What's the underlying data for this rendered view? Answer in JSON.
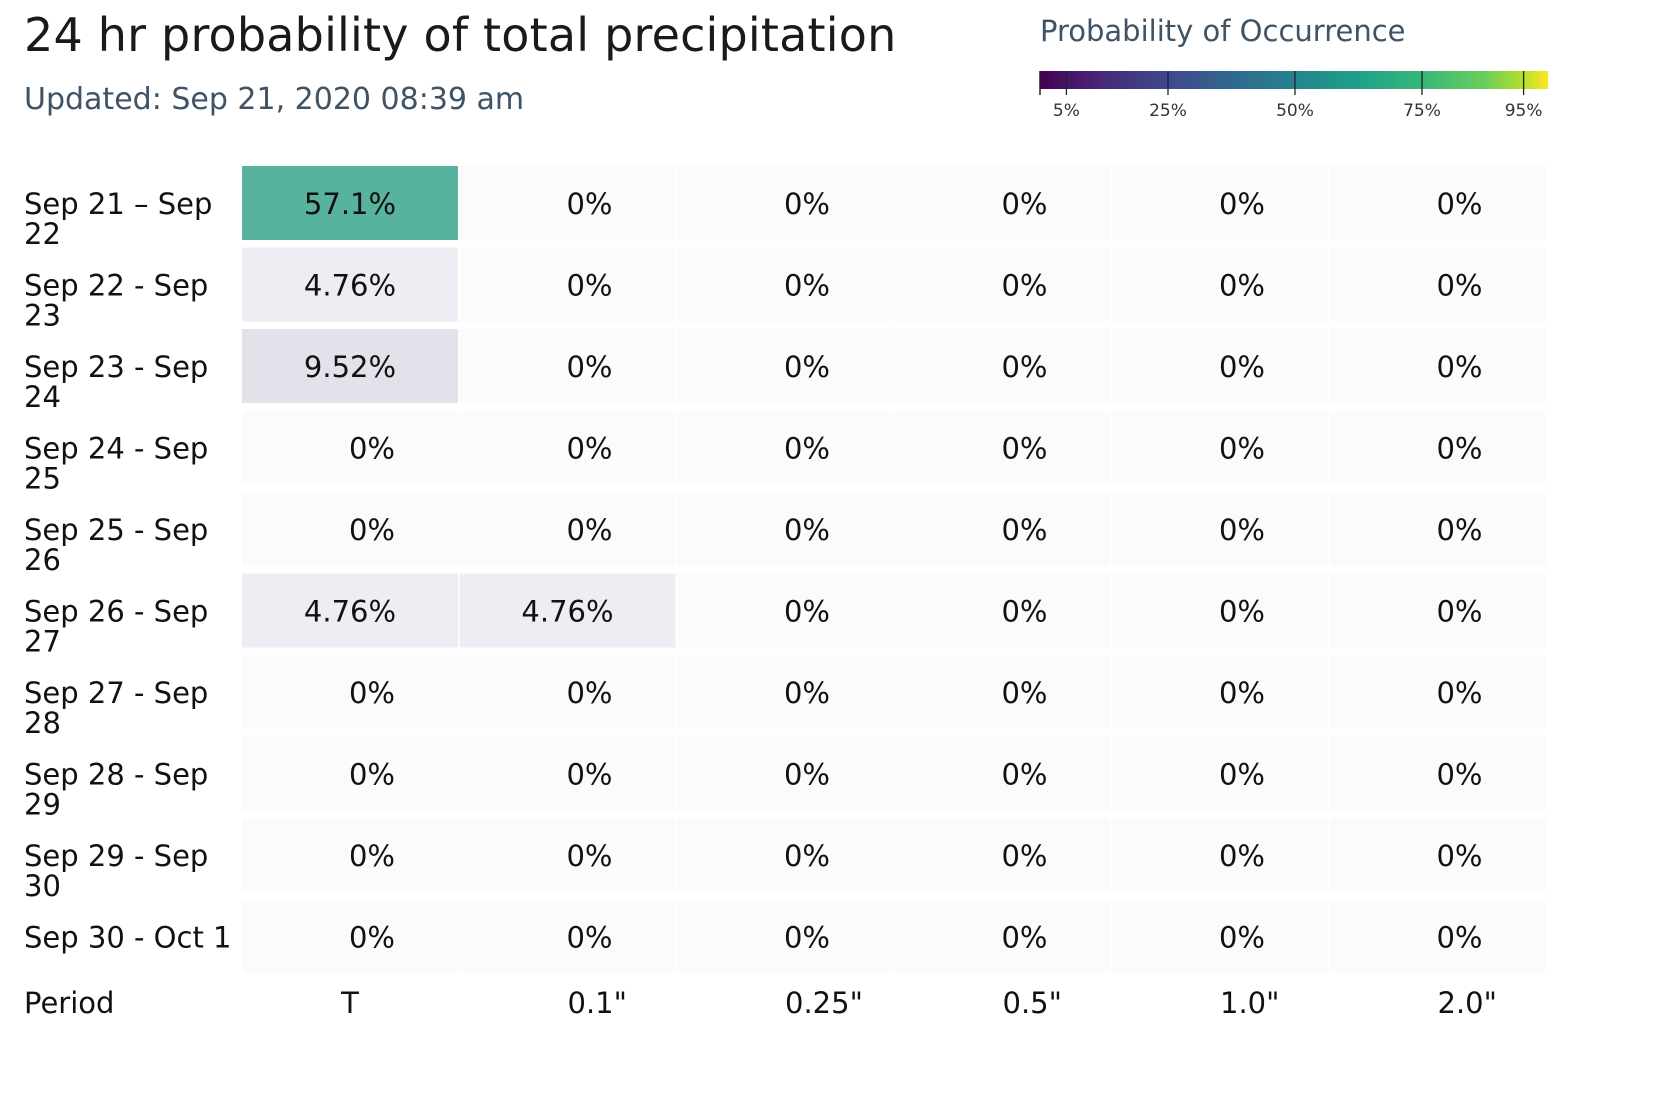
{
  "header": {
    "title": "24 hr probability of total precipitation",
    "updated": "Updated: Sep 21, 2020 08:39 am"
  },
  "legend": {
    "title": "Probability of Occurrence",
    "ticks": [
      {
        "value": 5,
        "label": "5%"
      },
      {
        "value": 25,
        "label": "25%"
      },
      {
        "value": 50,
        "label": "50%"
      },
      {
        "value": 75,
        "label": "75%"
      },
      {
        "value": 95,
        "label": "95%"
      }
    ],
    "colorscale": "viridis"
  },
  "chart_data": {
    "type": "heatmap",
    "title": "24 hr probability of total precipitation",
    "xlabel": "Period",
    "x_categories": [
      "T",
      "0.1\"",
      "0.25\"",
      "0.5\"",
      "1.0\"",
      "2.0\""
    ],
    "y_categories": [
      [
        "Sep 21 – Sep",
        "22"
      ],
      [
        "Sep 22 - Sep",
        "23"
      ],
      [
        "Sep 23 - Sep",
        "24"
      ],
      [
        "Sep 24 - Sep",
        "25"
      ],
      [
        "Sep 25 - Sep",
        "26"
      ],
      [
        "Sep 26 - Sep",
        "27"
      ],
      [
        "Sep 27 - Sep",
        "28"
      ],
      [
        "Sep 28 - Sep",
        "29"
      ],
      [
        "Sep 29 - Sep",
        "30"
      ],
      [
        "Sep 30 - Oct 1"
      ]
    ],
    "labels": [
      [
        "57.1%",
        "0%",
        "0%",
        "0%",
        "0%",
        "0%"
      ],
      [
        "4.76%",
        "0%",
        "0%",
        "0%",
        "0%",
        "0%"
      ],
      [
        "9.52%",
        "0%",
        "0%",
        "0%",
        "0%",
        "0%"
      ],
      [
        "0%",
        "0%",
        "0%",
        "0%",
        "0%",
        "0%"
      ],
      [
        "0%",
        "0%",
        "0%",
        "0%",
        "0%",
        "0%"
      ],
      [
        "4.76%",
        "4.76%",
        "0%",
        "0%",
        "0%",
        "0%"
      ],
      [
        "0%",
        "0%",
        "0%",
        "0%",
        "0%",
        "0%"
      ],
      [
        "0%",
        "0%",
        "0%",
        "0%",
        "0%",
        "0%"
      ],
      [
        "0%",
        "0%",
        "0%",
        "0%",
        "0%",
        "0%"
      ],
      [
        "0%",
        "0%",
        "0%",
        "0%",
        "0%",
        "0%"
      ]
    ],
    "values": [
      [
        57.1,
        0,
        0,
        0,
        0,
        0
      ],
      [
        4.76,
        0,
        0,
        0,
        0,
        0
      ],
      [
        9.52,
        0,
        0,
        0,
        0,
        0
      ],
      [
        0,
        0,
        0,
        0,
        0,
        0
      ],
      [
        0,
        0,
        0,
        0,
        0,
        0
      ],
      [
        4.76,
        4.76,
        0,
        0,
        0,
        0
      ],
      [
        0,
        0,
        0,
        0,
        0,
        0
      ],
      [
        0,
        0,
        0,
        0,
        0,
        0
      ],
      [
        0,
        0,
        0,
        0,
        0,
        0
      ],
      [
        0,
        0,
        0,
        0,
        0,
        0
      ]
    ],
    "range": [
      0,
      100
    ],
    "colors": {
      "high_cell": "#57b39d",
      "low_cell": "#efedf3",
      "mid_low_cell": "#e3e1ea",
      "zero_cell": "#fbfbfc"
    }
  }
}
